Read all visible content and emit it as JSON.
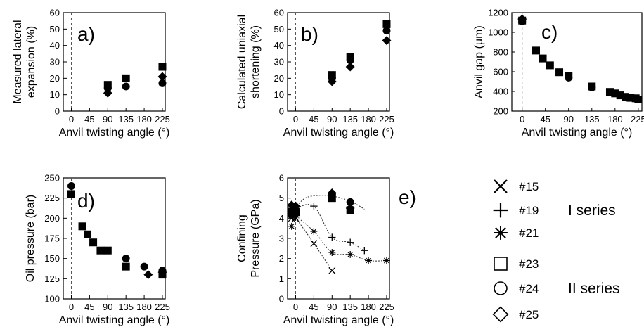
{
  "chart_data": [
    {
      "panel": "a)",
      "type": "scatter",
      "xlabel": "Anvil twisting angle (°)",
      "ylabel": "Measured lateral expansion (%)",
      "xlim": [
        -20,
        232
      ],
      "ylim": [
        0,
        60
      ],
      "xticks": [
        0,
        45,
        90,
        135,
        180,
        225
      ],
      "yticks": [
        0,
        10,
        20,
        30,
        40,
        50,
        60
      ],
      "series": [
        {
          "name": "#23",
          "marker": "square",
          "x": [
            90,
            135,
            225
          ],
          "y": [
            16,
            20,
            27
          ]
        },
        {
          "name": "#24",
          "marker": "circle",
          "x": [
            90,
            135,
            225
          ],
          "y": [
            14,
            15,
            17
          ]
        },
        {
          "name": "#25",
          "marker": "diamond",
          "x": [
            90,
            225
          ],
          "y": [
            11,
            21
          ]
        }
      ]
    },
    {
      "panel": "b)",
      "type": "scatter",
      "xlabel": "Anvil twisting angle (°)",
      "ylabel": "Calculated uniaxial shortening (%)",
      "xlim": [
        -20,
        232
      ],
      "ylim": [
        0,
        60
      ],
      "xticks": [
        0,
        45,
        90,
        135,
        180,
        225
      ],
      "yticks": [
        0,
        10,
        20,
        30,
        40,
        50,
        60
      ],
      "series": [
        {
          "name": "#23",
          "marker": "square",
          "x": [
            90,
            135,
            225
          ],
          "y": [
            22,
            33,
            53
          ]
        },
        {
          "name": "#24",
          "marker": "circle",
          "x": [
            90,
            135,
            225
          ],
          "y": [
            20,
            31,
            49
          ]
        },
        {
          "name": "#25",
          "marker": "diamond",
          "x": [
            90,
            135,
            225
          ],
          "y": [
            18,
            27,
            43
          ]
        }
      ]
    },
    {
      "panel": "c)",
      "type": "scatter",
      "xlabel": "Anvil twisting angle (°)",
      "ylabel": "Anvil gap (μm)",
      "xlim": [
        -20,
        232
      ],
      "ylim": [
        200,
        1200
      ],
      "xticks": [
        0,
        45,
        90,
        135,
        180,
        225
      ],
      "yticks": [
        200,
        400,
        600,
        800,
        1000,
        1200
      ],
      "series": [
        {
          "name": "#23",
          "marker": "square",
          "x": [
            0,
            27,
            40,
            54,
            72,
            90,
            135,
            170,
            180,
            190,
            200,
            210,
            220,
            225
          ],
          "y": [
            1120,
            815,
            735,
            665,
            595,
            560,
            450,
            395,
            380,
            360,
            345,
            335,
            330,
            318
          ]
        },
        {
          "name": "#24",
          "marker": "circle",
          "x": [
            0,
            90,
            135
          ],
          "y": [
            1110,
            540,
            440
          ]
        },
        {
          "name": "#25",
          "marker": "diamond",
          "x": [
            0
          ],
          "y": [
            1135
          ]
        }
      ]
    },
    {
      "panel": "d)",
      "type": "scatter",
      "xlabel": "Anvil twisting angle (°)",
      "ylabel": "Oil pressure (bar)",
      "xlim": [
        -20,
        232
      ],
      "ylim": [
        100,
        250
      ],
      "xticks": [
        0,
        45,
        90,
        135,
        180,
        225
      ],
      "yticks": [
        100,
        125,
        150,
        175,
        200,
        225,
        250
      ],
      "series": [
        {
          "name": "#23",
          "marker": "square",
          "x": [
            0,
            27,
            40,
            54,
            72,
            90,
            135,
            225
          ],
          "y": [
            230,
            190,
            180,
            170,
            160,
            160,
            140,
            130
          ]
        },
        {
          "name": "#24",
          "marker": "circle",
          "x": [
            0,
            135,
            180,
            225
          ],
          "y": [
            240,
            150,
            140,
            135
          ]
        },
        {
          "name": "#25",
          "marker": "diamond",
          "x": [
            190,
            225
          ],
          "y": [
            130,
            133
          ]
        }
      ]
    },
    {
      "panel": "e)",
      "type": "scatter",
      "xlabel": "Anvil twisting angle (°)",
      "ylabel": "Confining Pressure (GPa)",
      "xlim": [
        -20,
        232
      ],
      "ylim": [
        0,
        6
      ],
      "xticks": [
        0,
        45,
        90,
        135,
        180,
        225
      ],
      "yticks": [
        0,
        1,
        2,
        3,
        4,
        5,
        6
      ],
      "series": [
        {
          "name": "#15",
          "marker": "x",
          "x": [
            -10,
            0,
            45,
            90
          ],
          "y": [
            4.0,
            4.0,
            2.75,
            1.4
          ]
        },
        {
          "name": "#19",
          "marker": "plus",
          "x": [
            -10,
            0,
            45,
            90,
            135,
            170
          ],
          "y": [
            4.5,
            4.5,
            4.6,
            3.05,
            2.8,
            2.4
          ]
        },
        {
          "name": "#21",
          "marker": "asterisk",
          "x": [
            -10,
            0,
            45,
            90,
            135,
            180,
            225
          ],
          "y": [
            3.6,
            4.05,
            3.35,
            2.3,
            2.2,
            1.9,
            1.9
          ]
        },
        {
          "name": "#23",
          "marker": "square",
          "x": [
            -10,
            0,
            90,
            135
          ],
          "y": [
            4.3,
            4.3,
            5.0,
            4.4
          ]
        },
        {
          "name": "#24",
          "marker": "circle",
          "x": [
            -10,
            0,
            90,
            135
          ],
          "y": [
            4.15,
            4.25,
            5.2,
            4.8
          ]
        },
        {
          "name": "#25",
          "marker": "diamond",
          "x": [
            -10,
            0,
            90,
            135
          ],
          "y": [
            4.65,
            4.6,
            5.25,
            4.5
          ]
        }
      ],
      "trend_lines": [
        {
          "x": [
            -10,
            20,
            50,
            90,
            135,
            170
          ],
          "y": [
            4.3,
            4.95,
            5.12,
            5.1,
            4.85,
            4.45
          ]
        },
        {
          "x": [
            -10,
            0,
            45,
            90
          ],
          "y": [
            4.0,
            4.0,
            2.75,
            1.4
          ]
        },
        {
          "x": [
            -10,
            0,
            45,
            90,
            135,
            170
          ],
          "y": [
            4.5,
            4.5,
            4.6,
            3.05,
            2.8,
            2.4
          ]
        },
        {
          "x": [
            -10,
            0,
            45,
            90,
            135,
            180,
            225
          ],
          "y": [
            3.6,
            4.05,
            3.35,
            2.3,
            2.2,
            1.9,
            1.9
          ]
        }
      ]
    }
  ],
  "legend": {
    "items": [
      {
        "name": "#15",
        "marker": "x"
      },
      {
        "name": "#19",
        "marker": "plus"
      },
      {
        "name": "#21",
        "marker": "asterisk"
      },
      {
        "name": "#23",
        "marker": "square"
      },
      {
        "name": "#24",
        "marker": "circle"
      },
      {
        "name": "#25",
        "marker": "diamond"
      }
    ],
    "groups": [
      {
        "label": "I series",
        "members": [
          "#15",
          "#19",
          "#21"
        ]
      },
      {
        "label": "II series",
        "members": [
          "#23",
          "#24",
          "#25"
        ]
      }
    ]
  }
}
